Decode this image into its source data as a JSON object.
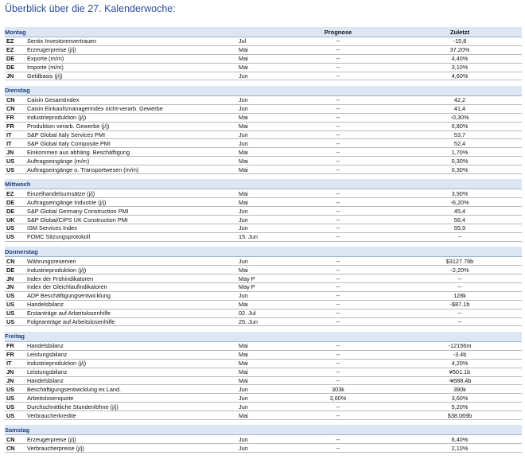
{
  "header": {
    "title": "Überblick über die 27. Kalenderwoche:",
    "prognose": "Prognose",
    "zuletzt": "Zuletzt"
  },
  "sections": [
    {
      "day": "Montag",
      "rows": [
        [
          "EZ",
          "Sentix Investorenvertrauen",
          "Jul",
          "--",
          "-15,8"
        ],
        [
          "EZ",
          "Erzeugerpreise (j/j)",
          "Mai",
          "--",
          "37,20%"
        ],
        [
          "DE",
          "Exporte (m/m)",
          "Mai",
          "--",
          "4,40%"
        ],
        [
          "DE",
          "Importe (m/m)",
          "Mai",
          "--",
          "3,10%"
        ],
        [
          "JN",
          "Geldbasis (j/j)",
          "Jun",
          "--",
          "4,60%"
        ]
      ]
    },
    {
      "day": "Dienstag",
      "rows": [
        [
          "CN",
          "Caixin Gesamtindex",
          "Jun",
          "--",
          "42,2"
        ],
        [
          "CN",
          "Caixin Einkaufsmanagerindex nicht-verarb. Gewerbe",
          "Jun",
          "--",
          "41,4"
        ],
        [
          "FR",
          "Industrieproduktion (j/j)",
          "Mai",
          "--",
          "-0,30%"
        ],
        [
          "FR",
          "Produktion verarb. Gewerbe (j/j)",
          "Mai",
          "--",
          "0,80%"
        ],
        [
          "IT",
          "S&P Global Italy Services PMI",
          "Jun",
          "--",
          "53,7"
        ],
        [
          "IT",
          "S&P Global Italy Composite PMI",
          "Jun",
          "--",
          "52,4"
        ],
        [
          "JN",
          "Einkommen aus abhäng. Beschäftigung",
          "Mai",
          "--",
          "1,70%"
        ],
        [
          "US",
          "Auftragseingänge (m/m)",
          "Mai",
          "--",
          "0,30%"
        ],
        [
          "US",
          "Auftragseingänge o. Transportwesen (m/m)",
          "Mai",
          "--",
          "0,30%"
        ]
      ]
    },
    {
      "day": "Mittwoch",
      "rows": [
        [
          "EZ",
          "Einzelhandelsumsätze (j/j)",
          "Mai",
          "--",
          "3,90%"
        ],
        [
          "DE",
          "Auftragseingänge Industrie (j/j)",
          "Mai",
          "--",
          "-6,20%"
        ],
        [
          "DE",
          "S&P Global Germany Construction PMI",
          "Jun",
          "--",
          "45,4"
        ],
        [
          "UK",
          "S&P Global/CIPS UK Construction PMI",
          "Jun",
          "--",
          "56,4"
        ],
        [
          "US",
          "ISM Services Index",
          "Jun",
          "--",
          "55,9"
        ],
        [
          "US",
          "FOMC Sitzungsprotokoll",
          "15. Jun",
          "--",
          "--"
        ]
      ]
    },
    {
      "day": "Donnerstag",
      "rows": [
        [
          "CN",
          "Währungsreserven",
          "Jun",
          "--",
          "$3127.78b"
        ],
        [
          "DE",
          "Industrieproduktion (j/j)",
          "Mai",
          "--",
          "-2,20%"
        ],
        [
          "JN",
          "Index der Frühindikatoren",
          "May P",
          "--",
          "--"
        ],
        [
          "JN",
          "Index der Gleichlaufindikatoren",
          "May P",
          "--",
          "--"
        ],
        [
          "US",
          "ADP Beschäftigungsentwicklung",
          "Jun",
          "--",
          "128k"
        ],
        [
          "US",
          "Handelsbilanz",
          "Mai",
          "--",
          "-$87.1b"
        ],
        [
          "US",
          "Erstanträge auf Arbeitslosenhilfe",
          "02. Jul",
          "--",
          "--"
        ],
        [
          "US",
          "Folgeanträge auf Arbeitslosenhilfe",
          "25. Jun",
          "--",
          "--"
        ]
      ]
    },
    {
      "day": "Freitag",
      "rows": [
        [
          "FR",
          "Handelsbilanz",
          "Mai",
          "--",
          "-12156m"
        ],
        [
          "FR",
          "Leistungsbilanz",
          "Mai",
          "--",
          "-3.4b"
        ],
        [
          "IT",
          "Industrieproduktion (j/j)",
          "Mai",
          "--",
          "4,20%"
        ],
        [
          "JN",
          "Leistungsbilanz",
          "Mai",
          "--",
          "¥501.1b"
        ],
        [
          "JN",
          "Handelsbilanz",
          "Mai",
          "--",
          "-¥688.4b"
        ],
        [
          "US",
          "Beschäftigungsentwicklung ex Land.",
          "Jun",
          "303k",
          "390k"
        ],
        [
          "US",
          "Arbeitslosenquote",
          "Jun",
          "3,60%",
          "3,60%"
        ],
        [
          "US",
          "Durchschnittliche Stundenlöhne (j/j)",
          "Jun",
          "--",
          "5,20%"
        ],
        [
          "US",
          "Verbraucherkredite",
          "Mai",
          "--",
          "$38.069b"
        ]
      ]
    },
    {
      "day": "Samstag",
      "rows": [
        [
          "CN",
          "Erzeugerpreise (j/j)",
          "Jun",
          "--",
          "6,40%"
        ],
        [
          "CN",
          "Verbraucherpreise (j/j)",
          "Jun",
          "--",
          "2,10%"
        ]
      ]
    }
  ]
}
